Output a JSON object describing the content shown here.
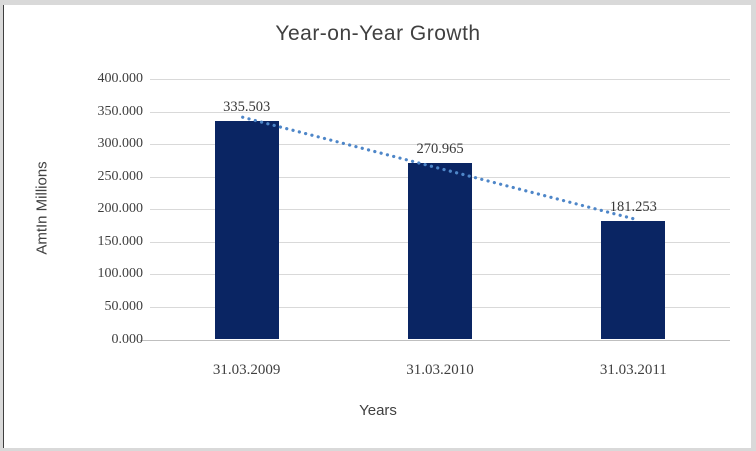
{
  "chart_data": {
    "type": "bar",
    "title": "Year-on-Year Growth",
    "xlabel": "Years",
    "ylabel": "AmtIn Millions",
    "categories": [
      "31.03.2009",
      "31.03.2010",
      "31.03.2011"
    ],
    "values": [
      335.503,
      270.965,
      181.253
    ],
    "data_labels": [
      "335.503",
      "270.965",
      "181.253"
    ],
    "y_ticks": [
      "400.000",
      "350.000",
      "300.000",
      "250.000",
      "200.000",
      "150.000",
      "100.000",
      "50.000",
      "0.000"
    ],
    "ylim": [
      0,
      400
    ],
    "grid": true,
    "legend_position": "none",
    "trendline": {
      "type": "linear",
      "style": "dotted"
    },
    "colors": {
      "bar": "#0a2563",
      "trendline": "#4e86c8",
      "gridline": "#d9d9d9",
      "axis_line": "#bfbfbf",
      "text": "#404040",
      "frame_background": "#ffffff",
      "outer_background": "#d9d9d9",
      "frame_border": "#3f3f3f"
    }
  }
}
